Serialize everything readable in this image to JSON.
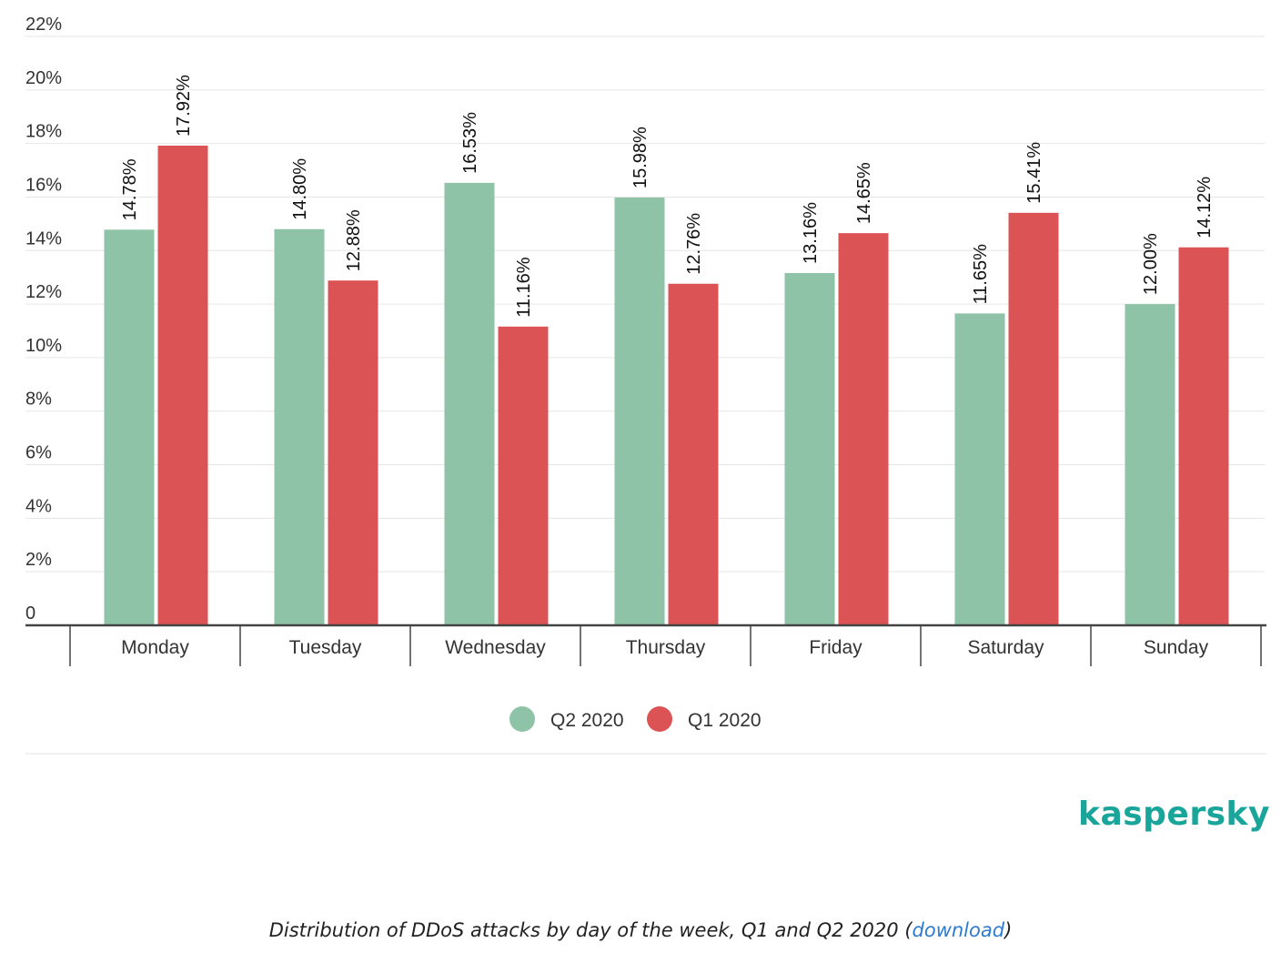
{
  "chart_data": {
    "type": "bar",
    "categories": [
      "Monday",
      "Tuesday",
      "Wednesday",
      "Thursday",
      "Friday",
      "Saturday",
      "Sunday"
    ],
    "series": [
      {
        "name": "Q2 2020",
        "color": "#8ec3a7",
        "values": [
          14.78,
          14.8,
          16.53,
          15.98,
          13.16,
          11.65,
          12.0
        ],
        "labels": [
          "14.78%",
          "14.80%",
          "16.53%",
          "15.98%",
          "13.16%",
          "11.65%",
          "12.00%"
        ]
      },
      {
        "name": "Q1 2020",
        "color": "#dc5356",
        "values": [
          17.92,
          12.88,
          11.16,
          12.76,
          14.65,
          15.41,
          14.12
        ],
        "labels": [
          "17.92%",
          "12.88%",
          "11.16%",
          "12.76%",
          "14.65%",
          "15.41%",
          "14.12%"
        ]
      }
    ],
    "ylim": [
      0,
      22
    ],
    "yticks": [
      0,
      2,
      4,
      6,
      8,
      10,
      12,
      14,
      16,
      18,
      20,
      22
    ],
    "ytick_labels": [
      "0",
      "2%",
      "4%",
      "6%",
      "8%",
      "10%",
      "12%",
      "14%",
      "16%",
      "18%",
      "20%",
      "22%"
    ],
    "grid": true,
    "legend_position": "bottom-center",
    "title": "",
    "xlabel": "",
    "ylabel": ""
  },
  "brand": "kaspersky",
  "caption": {
    "text": "Distribution of DDoS attacks by day of the week, Q1 and Q2 2020 (",
    "link": "download",
    "suffix": ")"
  }
}
